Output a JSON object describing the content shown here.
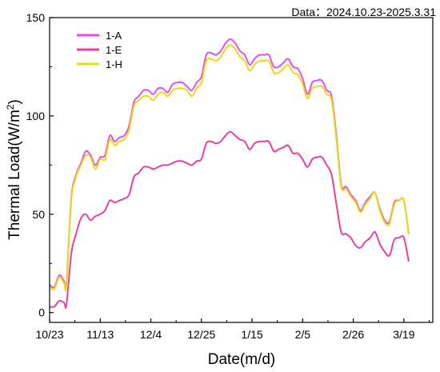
{
  "chart_data": {
    "type": "line",
    "annotation": "Data：2024.10.23-2025.3.31",
    "xlabel": "Date(m/d)",
    "ylabel_main": "Thermal Load(W/m",
    "ylabel_sup": "2",
    "ylabel_close": ")",
    "xlim": [
      "2024-10-23",
      "2025-03-31"
    ],
    "ylim": [
      -5,
      150
    ],
    "yticks": [
      0,
      50,
      100,
      150
    ],
    "xticks": [
      {
        "date": "2024-10-23",
        "label": "10/23"
      },
      {
        "date": "2024-11-13",
        "label": "11/13"
      },
      {
        "date": "2024-12-04",
        "label": "12/4"
      },
      {
        "date": "2024-12-25",
        "label": "12/25"
      },
      {
        "date": "2025-01-15",
        "label": "1/15"
      },
      {
        "date": "2025-02-05",
        "label": "2/5"
      },
      {
        "date": "2025-02-26",
        "label": "2/26"
      },
      {
        "date": "2025-03-19",
        "label": "3/19"
      }
    ],
    "legend_position": "top-left",
    "series": [
      {
        "name": "1-A",
        "color": "#e84fe8",
        "points": [
          [
            "2024-10-23",
            14
          ],
          [
            "2024-10-25",
            13
          ],
          [
            "2024-10-27",
            19
          ],
          [
            "2024-10-29",
            16
          ],
          [
            "2024-10-30",
            15
          ],
          [
            "2024-11-01",
            58
          ],
          [
            "2024-11-03",
            70
          ],
          [
            "2024-11-05",
            76
          ],
          [
            "2024-11-07",
            82
          ],
          [
            "2024-11-09",
            80
          ],
          [
            "2024-11-11",
            75
          ],
          [
            "2024-11-13",
            79
          ],
          [
            "2024-11-15",
            80
          ],
          [
            "2024-11-17",
            90
          ],
          [
            "2024-11-19",
            87
          ],
          [
            "2024-11-21",
            89
          ],
          [
            "2024-11-23",
            90
          ],
          [
            "2024-11-25",
            95
          ],
          [
            "2024-11-27",
            107
          ],
          [
            "2024-11-29",
            110
          ],
          [
            "2024-12-01",
            113
          ],
          [
            "2024-12-03",
            113
          ],
          [
            "2024-12-05",
            111
          ],
          [
            "2024-12-07",
            114
          ],
          [
            "2024-12-09",
            114
          ],
          [
            "2024-12-11",
            112
          ],
          [
            "2024-12-13",
            116
          ],
          [
            "2024-12-15",
            117
          ],
          [
            "2024-12-17",
            117
          ],
          [
            "2024-12-19",
            115
          ],
          [
            "2024-12-21",
            113
          ],
          [
            "2024-12-23",
            117
          ],
          [
            "2024-12-25",
            120
          ],
          [
            "2024-12-27",
            131
          ],
          [
            "2024-12-29",
            132
          ],
          [
            "2024-12-31",
            131
          ],
          [
            "2025-01-02",
            133
          ],
          [
            "2025-01-04",
            137
          ],
          [
            "2025-01-06",
            139
          ],
          [
            "2025-01-08",
            137
          ],
          [
            "2025-01-10",
            133
          ],
          [
            "2025-01-12",
            131
          ],
          [
            "2025-01-14",
            126
          ],
          [
            "2025-01-16",
            129
          ],
          [
            "2025-01-18",
            131
          ],
          [
            "2025-01-20",
            131
          ],
          [
            "2025-01-22",
            131
          ],
          [
            "2025-01-24",
            125
          ],
          [
            "2025-01-26",
            125
          ],
          [
            "2025-01-28",
            127
          ],
          [
            "2025-01-30",
            129
          ],
          [
            "2025-02-01",
            125
          ],
          [
            "2025-02-03",
            124
          ],
          [
            "2025-02-05",
            119
          ],
          [
            "2025-02-07",
            111
          ],
          [
            "2025-02-09",
            117
          ],
          [
            "2025-02-11",
            118
          ],
          [
            "2025-02-13",
            118
          ],
          [
            "2025-02-15",
            113
          ],
          [
            "2025-02-17",
            110
          ],
          [
            "2025-02-19",
            90
          ],
          [
            "2025-02-21",
            65
          ],
          [
            "2025-02-23",
            64
          ],
          [
            "2025-02-25",
            60
          ],
          [
            "2025-02-27",
            57
          ],
          [
            "2025-03-01",
            52
          ],
          [
            "2025-03-03",
            56
          ],
          [
            "2025-03-05",
            59
          ],
          [
            "2025-03-07",
            61
          ],
          [
            "2025-03-09",
            53
          ],
          [
            "2025-03-11",
            47
          ],
          [
            "2025-03-13",
            46
          ],
          [
            "2025-03-15",
            56
          ],
          [
            "2025-03-17",
            57
          ],
          [
            "2025-03-19",
            57
          ],
          [
            "2025-03-21",
            40
          ]
        ]
      },
      {
        "name": "1-E",
        "color": "#e8409c",
        "points": [
          [
            "2024-10-23",
            3
          ],
          [
            "2024-10-25",
            3
          ],
          [
            "2024-10-27",
            6
          ],
          [
            "2024-10-29",
            5
          ],
          [
            "2024-10-30",
            4
          ],
          [
            "2024-11-01",
            30
          ],
          [
            "2024-11-03",
            40
          ],
          [
            "2024-11-05",
            48
          ],
          [
            "2024-11-07",
            50
          ],
          [
            "2024-11-09",
            47
          ],
          [
            "2024-11-11",
            49
          ],
          [
            "2024-11-13",
            50
          ],
          [
            "2024-11-15",
            52
          ],
          [
            "2024-11-17",
            57
          ],
          [
            "2024-11-19",
            56
          ],
          [
            "2024-11-21",
            57
          ],
          [
            "2024-11-23",
            58
          ],
          [
            "2024-11-25",
            60
          ],
          [
            "2024-11-27",
            69
          ],
          [
            "2024-11-29",
            71
          ],
          [
            "2024-12-01",
            74
          ],
          [
            "2024-12-03",
            74
          ],
          [
            "2024-12-05",
            73
          ],
          [
            "2024-12-07",
            74
          ],
          [
            "2024-12-09",
            75
          ],
          [
            "2024-12-11",
            75
          ],
          [
            "2024-12-13",
            76
          ],
          [
            "2024-12-15",
            77
          ],
          [
            "2024-12-17",
            77
          ],
          [
            "2024-12-19",
            76
          ],
          [
            "2024-12-21",
            75
          ],
          [
            "2024-12-23",
            77
          ],
          [
            "2024-12-25",
            78
          ],
          [
            "2024-12-27",
            86
          ],
          [
            "2024-12-29",
            87
          ],
          [
            "2024-12-31",
            86
          ],
          [
            "2025-01-02",
            87
          ],
          [
            "2025-01-04",
            90
          ],
          [
            "2025-01-06",
            92
          ],
          [
            "2025-01-08",
            90
          ],
          [
            "2025-01-10",
            88
          ],
          [
            "2025-01-12",
            87
          ],
          [
            "2025-01-14",
            83
          ],
          [
            "2025-01-16",
            86
          ],
          [
            "2025-01-18",
            87
          ],
          [
            "2025-01-20",
            87
          ],
          [
            "2025-01-22",
            87
          ],
          [
            "2025-01-24",
            82
          ],
          [
            "2025-01-26",
            83
          ],
          [
            "2025-01-28",
            84
          ],
          [
            "2025-01-30",
            85
          ],
          [
            "2025-02-01",
            81
          ],
          [
            "2025-02-03",
            81
          ],
          [
            "2025-02-05",
            78
          ],
          [
            "2025-02-07",
            74
          ],
          [
            "2025-02-09",
            78
          ],
          [
            "2025-02-11",
            79
          ],
          [
            "2025-02-13",
            79
          ],
          [
            "2025-02-15",
            75
          ],
          [
            "2025-02-17",
            70
          ],
          [
            "2025-02-19",
            55
          ],
          [
            "2025-02-21",
            41
          ],
          [
            "2025-02-23",
            40
          ],
          [
            "2025-02-25",
            38
          ],
          [
            "2025-02-27",
            34
          ],
          [
            "2025-03-01",
            33
          ],
          [
            "2025-03-03",
            36
          ],
          [
            "2025-03-05",
            38
          ],
          [
            "2025-03-07",
            41
          ],
          [
            "2025-03-09",
            35
          ],
          [
            "2025-03-11",
            31
          ],
          [
            "2025-03-13",
            29
          ],
          [
            "2025-03-15",
            37
          ],
          [
            "2025-03-17",
            38
          ],
          [
            "2025-03-19",
            38
          ],
          [
            "2025-03-21",
            26
          ]
        ]
      },
      {
        "name": "1-H",
        "color": "#e6dc14",
        "points": [
          [
            "2024-10-23",
            13
          ],
          [
            "2024-10-25",
            12
          ],
          [
            "2024-10-27",
            18
          ],
          [
            "2024-10-29",
            15
          ],
          [
            "2024-10-30",
            14
          ],
          [
            "2024-11-01",
            57
          ],
          [
            "2024-11-03",
            69
          ],
          [
            "2024-11-05",
            75
          ],
          [
            "2024-11-07",
            80
          ],
          [
            "2024-11-09",
            79
          ],
          [
            "2024-11-11",
            73
          ],
          [
            "2024-11-13",
            78
          ],
          [
            "2024-11-15",
            78
          ],
          [
            "2024-11-17",
            88
          ],
          [
            "2024-11-19",
            85
          ],
          [
            "2024-11-21",
            87
          ],
          [
            "2024-11-23",
            88
          ],
          [
            "2024-11-25",
            93
          ],
          [
            "2024-11-27",
            105
          ],
          [
            "2024-11-29",
            108
          ],
          [
            "2024-12-01",
            110
          ],
          [
            "2024-12-03",
            110
          ],
          [
            "2024-12-05",
            108
          ],
          [
            "2024-12-07",
            111
          ],
          [
            "2024-12-09",
            112
          ],
          [
            "2024-12-11",
            110
          ],
          [
            "2024-12-13",
            113
          ],
          [
            "2024-12-15",
            114
          ],
          [
            "2024-12-17",
            114
          ],
          [
            "2024-12-19",
            113
          ],
          [
            "2024-12-21",
            110
          ],
          [
            "2024-12-23",
            114
          ],
          [
            "2024-12-25",
            117
          ],
          [
            "2024-12-27",
            128
          ],
          [
            "2024-12-29",
            129
          ],
          [
            "2024-12-31",
            128
          ],
          [
            "2025-01-02",
            130
          ],
          [
            "2025-01-04",
            134
          ],
          [
            "2025-01-06",
            136
          ],
          [
            "2025-01-08",
            134
          ],
          [
            "2025-01-10",
            130
          ],
          [
            "2025-01-12",
            128
          ],
          [
            "2025-01-14",
            123
          ],
          [
            "2025-01-16",
            126
          ],
          [
            "2025-01-18",
            128
          ],
          [
            "2025-01-20",
            128
          ],
          [
            "2025-01-22",
            128
          ],
          [
            "2025-01-24",
            122
          ],
          [
            "2025-01-26",
            122
          ],
          [
            "2025-01-28",
            124
          ],
          [
            "2025-01-30",
            126
          ],
          [
            "2025-02-01",
            122
          ],
          [
            "2025-02-03",
            121
          ],
          [
            "2025-02-05",
            116
          ],
          [
            "2025-02-07",
            109
          ],
          [
            "2025-02-09",
            114
          ],
          [
            "2025-02-11",
            115
          ],
          [
            "2025-02-13",
            115
          ],
          [
            "2025-02-15",
            111
          ],
          [
            "2025-02-17",
            108
          ],
          [
            "2025-02-19",
            88
          ],
          [
            "2025-02-21",
            64
          ],
          [
            "2025-02-23",
            63
          ],
          [
            "2025-02-25",
            59
          ],
          [
            "2025-02-27",
            56
          ],
          [
            "2025-03-01",
            51
          ],
          [
            "2025-03-03",
            55
          ],
          [
            "2025-03-05",
            58
          ],
          [
            "2025-03-07",
            61
          ],
          [
            "2025-03-09",
            52
          ],
          [
            "2025-03-11",
            46
          ],
          [
            "2025-03-13",
            45
          ],
          [
            "2025-03-15",
            55
          ],
          [
            "2025-03-17",
            57
          ],
          [
            "2025-03-19",
            57
          ],
          [
            "2025-03-21",
            40
          ]
        ]
      }
    ]
  }
}
